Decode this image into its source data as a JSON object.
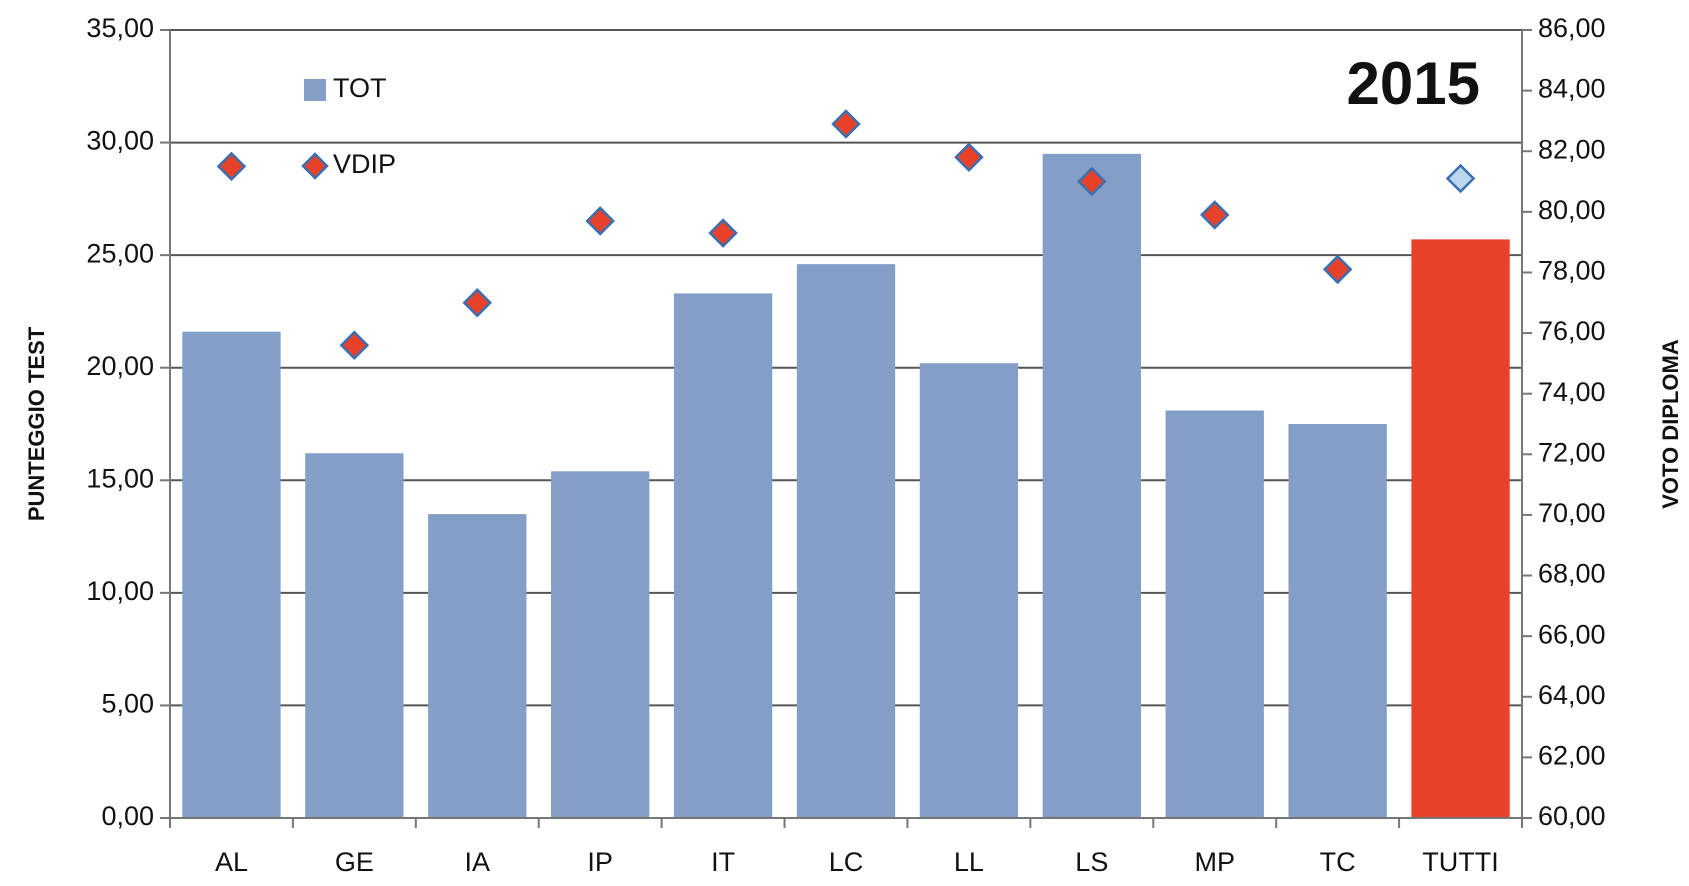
{
  "chart_data": {
    "type": "bar_scatter",
    "annotation": "2015",
    "ylabel": "PUNTEGGIO TEST",
    "y2label": "VOTO DIPLOMA",
    "categories": [
      "AL",
      "GE",
      "IA",
      "IP",
      "IT",
      "LC",
      "LL",
      "LS",
      "MP",
      "TC",
      "TUTTI"
    ],
    "series": [
      {
        "name": "TOT",
        "type": "bar",
        "color": "#849fc7",
        "colors": [
          "#849fc7",
          "#849fc7",
          "#849fc7",
          "#849fc7",
          "#849fc7",
          "#849fc7",
          "#849fc7",
          "#849fc7",
          "#849fc7",
          "#849fc7",
          "#e8412a"
        ],
        "values": [
          21.6,
          16.2,
          13.5,
          15.4,
          23.3,
          24.6,
          20.2,
          29.5,
          18.1,
          17.5,
          25.7
        ]
      },
      {
        "name": "VDIP",
        "type": "scatter",
        "axis": "y2",
        "color": "#e8412a",
        "colors": [
          "#e8412a",
          "#e8412a",
          "#e8412a",
          "#e8412a",
          "#e8412a",
          "#e8412a",
          "#e8412a",
          "#e8412a",
          "#e8412a",
          "#e8412a",
          "#bcd6ee"
        ],
        "values": [
          81.5,
          75.6,
          77.0,
          79.7,
          79.3,
          82.9,
          81.8,
          81.0,
          79.9,
          78.1,
          81.1
        ]
      }
    ],
    "ylim": [
      0,
      35
    ],
    "yticks": [
      {
        "value": 0,
        "label": "0,00"
      },
      {
        "value": 5,
        "label": "5,00"
      },
      {
        "value": 10,
        "label": "10,00"
      },
      {
        "value": 15,
        "label": "15,00"
      },
      {
        "value": 20,
        "label": "20,00"
      },
      {
        "value": 25,
        "label": "25,00"
      },
      {
        "value": 30,
        "label": "30,00"
      },
      {
        "value": 35,
        "label": "35,00"
      }
    ],
    "y2lim": [
      60,
      86
    ],
    "y2ticks": [
      {
        "value": 60,
        "label": "60,00"
      },
      {
        "value": 62,
        "label": "62,00"
      },
      {
        "value": 64,
        "label": "64,00"
      },
      {
        "value": 66,
        "label": "66,00"
      },
      {
        "value": 68,
        "label": "68,00"
      },
      {
        "value": 70,
        "label": "70,00"
      },
      {
        "value": 72,
        "label": "72,00"
      },
      {
        "value": 74,
        "label": "74,00"
      },
      {
        "value": 76,
        "label": "76,00"
      },
      {
        "value": 78,
        "label": "78,00"
      },
      {
        "value": 80,
        "label": "80,00"
      },
      {
        "value": 82,
        "label": "82,00"
      },
      {
        "value": 84,
        "label": "84,00"
      },
      {
        "value": 86,
        "label": "86,00"
      }
    ],
    "grid": true,
    "legend": "top-left"
  }
}
